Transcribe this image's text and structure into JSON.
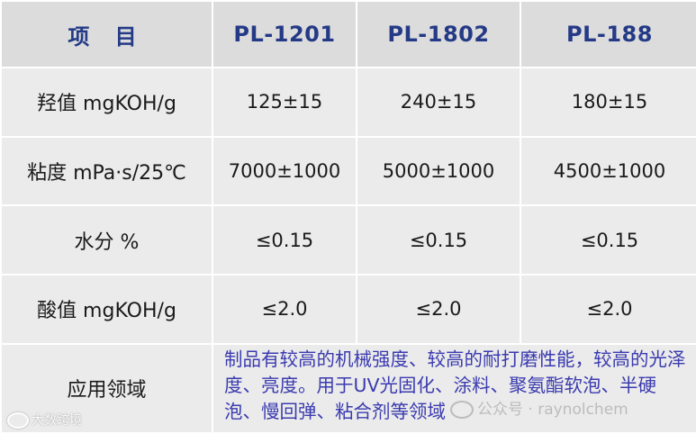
{
  "header": {
    "item": "项 目",
    "col1": "PL-1201",
    "col2": "PL-1802",
    "col3": "PL-188"
  },
  "rows": [
    {
      "label": "羟值  mgKOH/g",
      "v1": "125±15",
      "v2": "240±15",
      "v3": "180±15"
    },
    {
      "label": "粘度  mPa·s/25℃",
      "v1": "7000±1000",
      "v2": "5000±1000",
      "v3": "4500±1000"
    },
    {
      "label": "水分    %",
      "v1": "≤0.15",
      "v2": "≤0.15",
      "v3": "≤0.15"
    },
    {
      "label": "酸值   mgKOH/g",
      "v1": "≤2.0",
      "v2": "≤2.0",
      "v3": "≤2.0"
    }
  ],
  "application": {
    "label": "应用领域",
    "text": "制品有较高的机械强度、较高的耐打磨性能，较高的光泽度、亮度。用于UV光固化、涂料、聚氨酯软泡、半硬泡、慢回弹、粘合剂等领域"
  },
  "watermarks": {
    "center": "公众号 · raynolchem",
    "corner": "大数跨境"
  }
}
